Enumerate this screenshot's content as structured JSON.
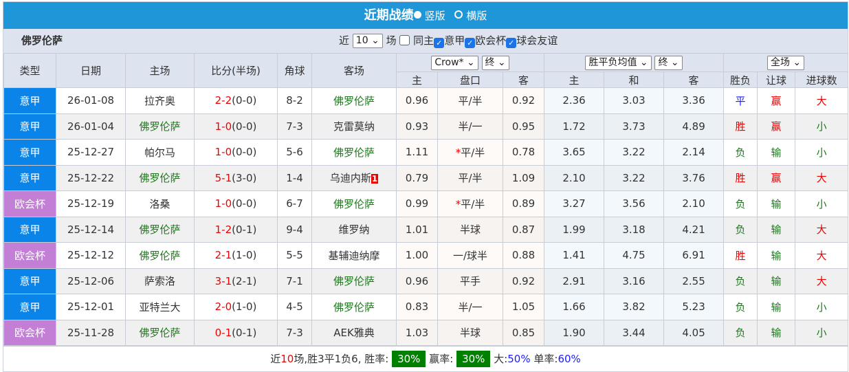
{
  "title": "近期战绩",
  "view_options": [
    "竖版",
    "横版"
  ],
  "team": "佛罗伦萨",
  "filters": {
    "recent_label": "近",
    "recent_count": "10",
    "unit": "场",
    "same_home": "同主",
    "checks": [
      "意甲",
      "欧会杯",
      "球会友谊"
    ]
  },
  "headers": {
    "type": "类型",
    "date": "日期",
    "home": "主场",
    "score": "比分(半场)",
    "corners": "角球",
    "away": "客场",
    "asian_company": "Crow*",
    "asian_phase": "终",
    "eu_select": "胜平负均值",
    "eu_phase": "终",
    "scope": "全场",
    "asian_cols": [
      "主",
      "盘口",
      "客"
    ],
    "eu_cols": [
      "主",
      "和",
      "客"
    ],
    "result_cols": [
      "胜负",
      "让球",
      "进球数"
    ]
  },
  "colors": {
    "意甲": "#0a84e8",
    "欧会杯": "#c37fd6"
  },
  "rows": [
    {
      "type": "意甲",
      "date": "26-01-08",
      "home": "拉齐奥",
      "score": "2-2",
      "half": "(0-0)",
      "corners": "8-2",
      "away": "佛罗伦萨",
      "red_card": "",
      "ah": "0.96",
      "line": "平/半",
      "star": "",
      "aa": "0.92",
      "eh": "2.36",
      "ed": "3.03",
      "ea": "3.36",
      "wl": "平",
      "hc": "赢",
      "ou": "大",
      "focus": "away"
    },
    {
      "type": "意甲",
      "date": "26-01-04",
      "home": "佛罗伦萨",
      "score": "1-0",
      "half": "(0-0)",
      "corners": "7-3",
      "away": "克雷莫纳",
      "red_card": "",
      "ah": "0.93",
      "line": "半/一",
      "star": "",
      "aa": "0.95",
      "eh": "1.72",
      "ed": "3.73",
      "ea": "4.89",
      "wl": "胜",
      "hc": "赢",
      "ou": "小",
      "focus": "home"
    },
    {
      "type": "意甲",
      "date": "25-12-27",
      "home": "帕尔马",
      "score": "1-0",
      "half": "(0-0)",
      "corners": "5-6",
      "away": "佛罗伦萨",
      "red_card": "",
      "ah": "1.11",
      "line": "平/半",
      "star": "*",
      "aa": "0.78",
      "eh": "3.65",
      "ed": "3.22",
      "ea": "2.14",
      "wl": "负",
      "hc": "输",
      "ou": "小",
      "focus": "away"
    },
    {
      "type": "意甲",
      "date": "25-12-22",
      "home": "佛罗伦萨",
      "score": "5-1",
      "half": "(3-0)",
      "corners": "1-4",
      "away": "乌迪内斯",
      "red_card": "1",
      "ah": "0.79",
      "line": "平/半",
      "star": "",
      "aa": "1.09",
      "eh": "2.10",
      "ed": "3.22",
      "ea": "3.76",
      "wl": "胜",
      "hc": "赢",
      "ou": "大",
      "focus": "home"
    },
    {
      "type": "欧会杯",
      "date": "25-12-19",
      "home": "洛桑",
      "score": "1-0",
      "half": "(0-0)",
      "corners": "6-7",
      "away": "佛罗伦萨",
      "red_card": "",
      "ah": "0.99",
      "line": "平/半",
      "star": "*",
      "aa": "0.89",
      "eh": "3.27",
      "ed": "3.56",
      "ea": "2.10",
      "wl": "负",
      "hc": "输",
      "ou": "小",
      "focus": "away"
    },
    {
      "type": "意甲",
      "date": "25-12-14",
      "home": "佛罗伦萨",
      "score": "1-2",
      "half": "(0-1)",
      "corners": "9-4",
      "away": "维罗纳",
      "red_card": "",
      "ah": "1.01",
      "line": "半球",
      "star": "",
      "aa": "0.87",
      "eh": "1.99",
      "ed": "3.18",
      "ea": "4.21",
      "wl": "负",
      "hc": "输",
      "ou": "大",
      "focus": "home"
    },
    {
      "type": "欧会杯",
      "date": "25-12-12",
      "home": "佛罗伦萨",
      "score": "2-1",
      "half": "(1-0)",
      "corners": "5-5",
      "away": "基辅迪纳摩",
      "red_card": "",
      "ah": "1.00",
      "line": "一/球半",
      "star": "",
      "aa": "0.88",
      "eh": "1.41",
      "ed": "4.75",
      "ea": "6.91",
      "wl": "胜",
      "hc": "输",
      "ou": "大",
      "focus": "home"
    },
    {
      "type": "意甲",
      "date": "25-12-06",
      "home": "萨索洛",
      "score": "3-1",
      "half": "(2-1)",
      "corners": "7-1",
      "away": "佛罗伦萨",
      "red_card": "",
      "ah": "0.96",
      "line": "平手",
      "star": "",
      "aa": "0.92",
      "eh": "2.91",
      "ed": "3.16",
      "ea": "2.55",
      "wl": "负",
      "hc": "输",
      "ou": "大",
      "focus": "away"
    },
    {
      "type": "意甲",
      "date": "25-12-01",
      "home": "亚特兰大",
      "score": "2-0",
      "half": "(1-0)",
      "corners": "4-5",
      "away": "佛罗伦萨",
      "red_card": "",
      "ah": "0.83",
      "line": "半/一",
      "star": "",
      "aa": "1.05",
      "eh": "1.66",
      "ed": "3.82",
      "ea": "5.23",
      "wl": "负",
      "hc": "输",
      "ou": "小",
      "focus": "away"
    },
    {
      "type": "欧会杯",
      "date": "25-11-28",
      "home": "佛罗伦萨",
      "score": "0-1",
      "half": "(0-1)",
      "corners": "7-3",
      "away": "AEK雅典",
      "red_card": "",
      "ah": "1.03",
      "line": "半球",
      "star": "",
      "aa": "0.85",
      "eh": "1.90",
      "ed": "3.44",
      "ea": "4.05",
      "wl": "负",
      "hc": "输",
      "ou": "小",
      "focus": "home"
    }
  ],
  "summary": {
    "p1": "近",
    "count": "10",
    "p2": "场,胜3平1负6, 胜率:",
    "win_rate": "30%",
    "p3": "赢率:",
    "cover_rate": "30%",
    "p4": "大:",
    "over_rate": "50%",
    "p5": "单率:",
    "odd_rate": "60%"
  }
}
